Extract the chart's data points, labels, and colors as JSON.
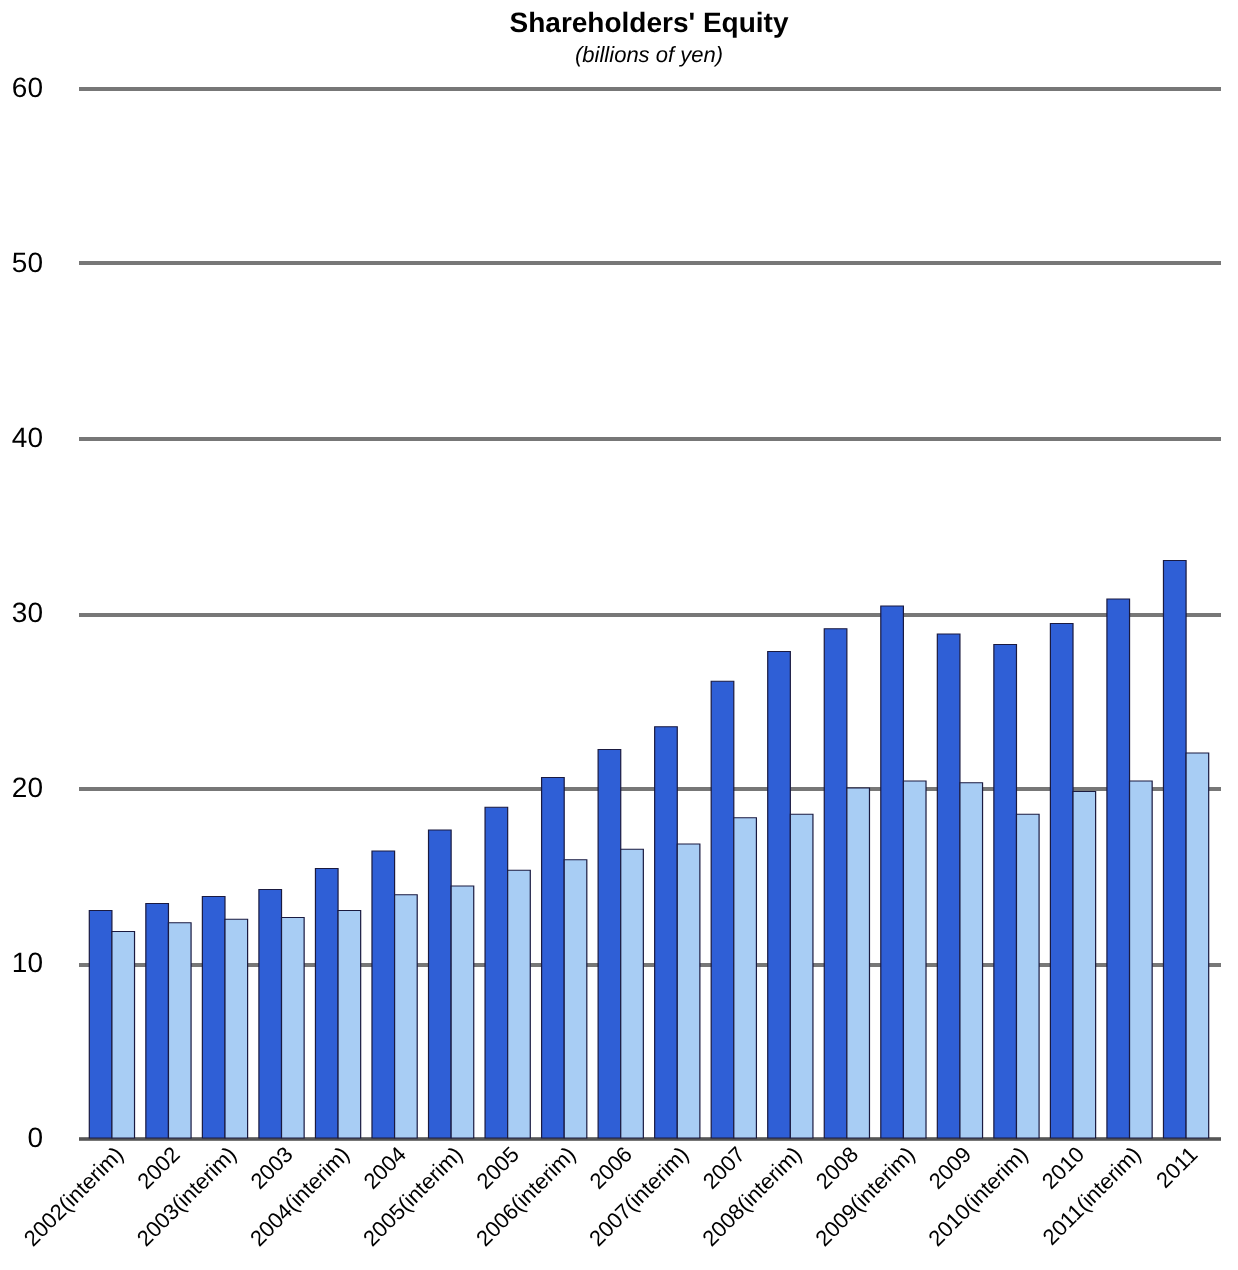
{
  "chart_data": {
    "type": "bar",
    "title": "Shareholders' Equity",
    "subtitle": "(billions of yen)",
    "categories": [
      "2002(interim)",
      "2002",
      "2003(interim)",
      "2003",
      "2004(interim)",
      "2004",
      "2005(interim)",
      "2005",
      "2006(interim)",
      "2006",
      "2007(interim)",
      "2007",
      "2008(interim)",
      "2008",
      "2009(interim)",
      "2009",
      "2010(interim)",
      "2010",
      "2011(interim)",
      "2011"
    ],
    "series": [
      {
        "color": "#2f5fd6",
        "values": [
          13.0,
          13.4,
          13.8,
          14.2,
          15.4,
          16.4,
          17.6,
          18.9,
          20.6,
          22.2,
          23.5,
          26.1,
          27.8,
          29.1,
          30.4,
          28.8,
          28.2,
          29.4,
          30.8,
          33.0
        ]
      },
      {
        "color": "#a8cdf4",
        "values": [
          11.8,
          12.3,
          12.5,
          12.6,
          13.0,
          13.9,
          14.4,
          15.3,
          15.9,
          16.5,
          16.8,
          18.3,
          18.5,
          20.0,
          20.4,
          20.3,
          18.5,
          19.8,
          20.4,
          22.0
        ]
      }
    ],
    "ylim": [
      0,
      60
    ],
    "yticks": [
      0,
      10,
      20,
      30,
      40,
      50,
      60
    ],
    "grid": "y"
  }
}
